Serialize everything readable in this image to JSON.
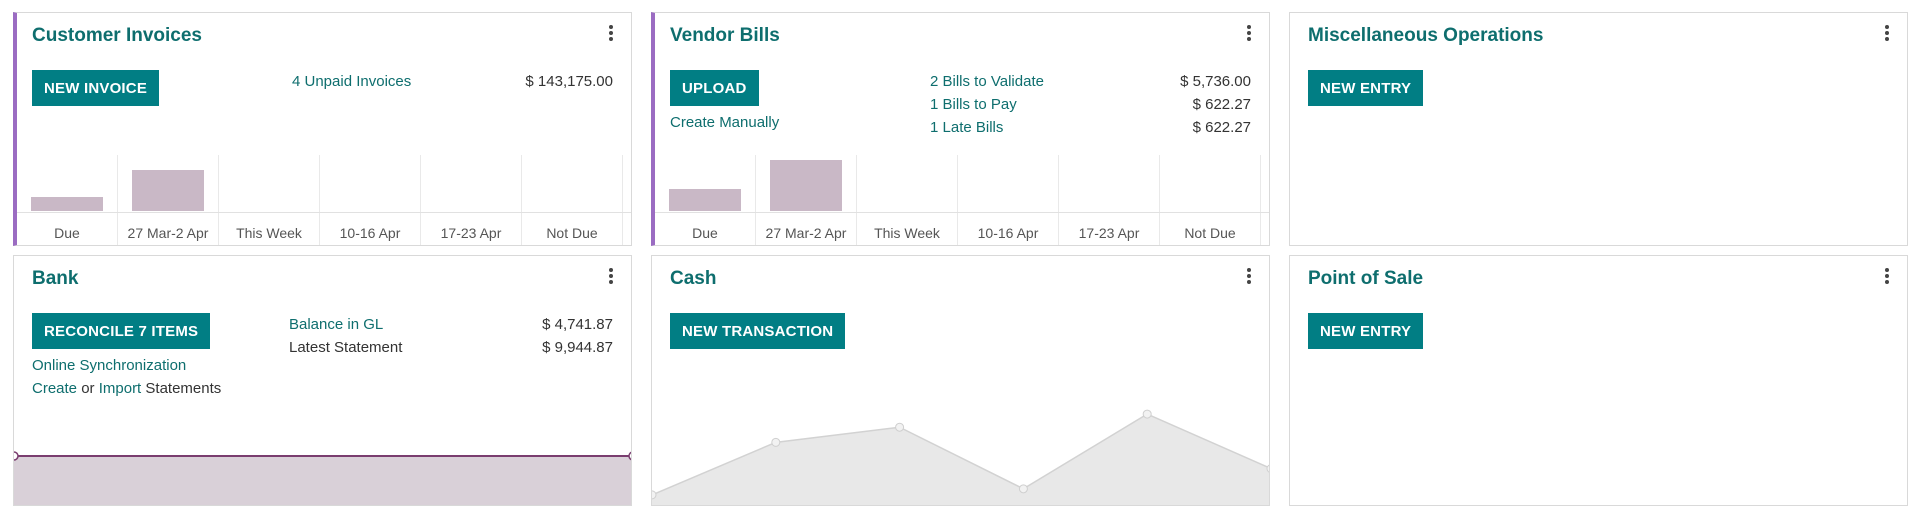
{
  "customer_invoices": {
    "title": "Customer Invoices",
    "button": "NEW INVOICE",
    "unpaid_label": "4 Unpaid Invoices",
    "unpaid_amount": "$ 143,175.00"
  },
  "vendor_bills": {
    "title": "Vendor Bills",
    "button": "UPLOAD",
    "create_manually": "Create Manually",
    "stats": [
      {
        "label": "2 Bills to Validate",
        "amount": "$ 5,736.00"
      },
      {
        "label": "1 Bills to Pay",
        "amount": "$ 622.27"
      },
      {
        "label": "1 Late Bills",
        "amount": "$ 622.27"
      }
    ]
  },
  "misc_operations": {
    "title": "Miscellaneous Operations",
    "button": "NEW ENTRY"
  },
  "bank": {
    "title": "Bank",
    "button": "RECONCILE 7 ITEMS",
    "online_sync": "Online Synchronization",
    "create": "Create",
    "or": "or",
    "import": "Import",
    "statements": "Statements",
    "balance_label": "Balance in GL",
    "balance_amount": "$ 4,741.87",
    "latest_label": "Latest Statement",
    "latest_amount": "$ 9,944.87"
  },
  "cash": {
    "title": "Cash",
    "button": "NEW TRANSACTION"
  },
  "pos": {
    "title": "Point of Sale",
    "button": "NEW ENTRY"
  },
  "colors": {
    "accent": "#9b6cc2",
    "button": "#017e84",
    "link": "#0e6e6e",
    "bar": "#c9b8c6",
    "bank_area": "#d9d0d8",
    "bank_line": "#7a3d6f",
    "cash_area": "#e8e8e8"
  },
  "chart_data": [
    {
      "type": "bar",
      "chart": "customer-invoices-aging",
      "categories": [
        "Due",
        "27 Mar-2 Apr",
        "This Week",
        "10-16 Apr",
        "17-23 Apr",
        "Not Due"
      ],
      "values": [
        0.25,
        0.75,
        0,
        0,
        0,
        0
      ]
    },
    {
      "type": "bar",
      "chart": "vendor-bills-aging",
      "categories": [
        "Due",
        "27 Mar-2 Apr",
        "This Week",
        "10-16 Apr",
        "17-23 Apr",
        "Not Due"
      ],
      "values": [
        0.4,
        0.95,
        0,
        0,
        0,
        0
      ]
    },
    {
      "type": "area",
      "chart": "bank-balance",
      "values": [
        1,
        1
      ]
    },
    {
      "type": "area",
      "chart": "cash-balance",
      "values": [
        0.12,
        0.64,
        0.79,
        0.18,
        0.92,
        0.38
      ]
    }
  ]
}
